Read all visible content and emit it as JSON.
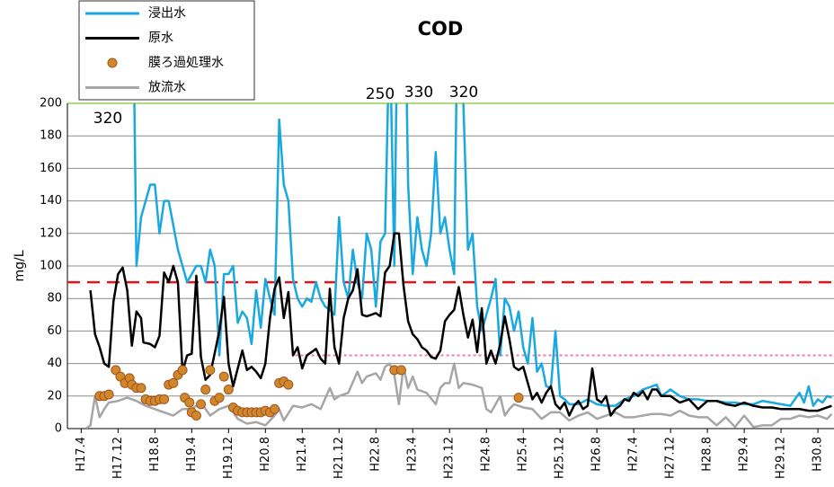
{
  "chart_data": {
    "type": "line",
    "title": "COD",
    "y_label": "mg/L",
    "xlim": [
      -3,
      163.5
    ],
    "ylim": [
      0,
      200
    ],
    "yticks": [
      0,
      20,
      40,
      60,
      80,
      100,
      120,
      140,
      160,
      180,
      200
    ],
    "xticks": [
      {
        "value": 0,
        "label": "H17.4"
      },
      {
        "value": 8,
        "label": "H17.12"
      },
      {
        "value": 16,
        "label": "H18.8"
      },
      {
        "value": 24,
        "label": "H19.4"
      },
      {
        "value": 32,
        "label": "H19.12"
      },
      {
        "value": 40,
        "label": "H20.8"
      },
      {
        "value": 48,
        "label": "H21.4"
      },
      {
        "value": 56,
        "label": "H21.12"
      },
      {
        "value": 64,
        "label": "H22.8"
      },
      {
        "value": 72,
        "label": "H23.4"
      },
      {
        "value": 80,
        "label": "H23.12"
      },
      {
        "value": 88,
        "label": "H24.8"
      },
      {
        "value": 96,
        "label": "H25.4"
      },
      {
        "value": 104,
        "label": "H25.12"
      },
      {
        "value": 112,
        "label": "H26.8"
      },
      {
        "value": 120,
        "label": "H27.4"
      },
      {
        "value": 128,
        "label": "H27.12"
      },
      {
        "value": 136,
        "label": "H28.8"
      },
      {
        "value": 144,
        "label": "H29.4"
      },
      {
        "value": 152,
        "label": "H29.12"
      },
      {
        "value": 160,
        "label": "H30.8"
      }
    ],
    "grid": true,
    "annotations": [
      "320",
      "250",
      "330",
      "320"
    ],
    "hlines": [
      {
        "value": 90,
        "color": "#e8141b",
        "style": "dashed"
      },
      {
        "value": 45,
        "color": "#f07aa8",
        "style": "dotted",
        "from": 46.5
      }
    ],
    "series": [
      {
        "name": "浸出水",
        "color": "#19a9e0",
        "style": "line",
        "x": [
          11,
          12,
          13,
          15,
          16,
          17,
          18,
          19,
          21,
          22,
          23,
          25,
          26,
          27,
          28,
          29,
          30,
          31,
          32,
          33,
          34,
          35,
          36,
          37,
          38,
          39,
          40,
          41,
          42,
          43,
          44,
          45,
          46,
          47,
          48,
          49,
          50,
          51,
          52,
          53,
          54,
          55,
          56,
          57,
          58,
          59,
          60,
          61,
          62,
          63,
          64,
          65,
          66,
          67,
          68,
          69,
          70,
          71,
          72,
          73,
          74,
          75,
          76,
          77,
          78,
          79,
          80,
          81,
          82,
          83,
          84,
          85,
          86,
          87,
          88,
          89,
          90,
          91,
          92,
          93,
          94,
          95,
          96,
          97,
          98,
          99,
          100,
          101,
          102,
          103,
          104,
          105,
          106,
          108,
          110,
          112,
          114,
          116,
          118,
          120,
          122,
          124,
          125,
          126,
          128,
          130,
          132,
          134,
          136,
          138,
          140,
          142,
          144,
          146,
          148,
          150,
          152,
          154,
          156,
          157,
          158,
          159,
          160,
          161,
          162,
          163
        ],
        "values": [
          320,
          100,
          130,
          150,
          150,
          120,
          140,
          140,
          110,
          100,
          90,
          100,
          100,
          90,
          110,
          100,
          45,
          95,
          95,
          100,
          65,
          72,
          68,
          52,
          85,
          62,
          92,
          80,
          70,
          190,
          150,
          140,
          92,
          80,
          75,
          80,
          78,
          90,
          80,
          75,
          73,
          70,
          130,
          90,
          80,
          110,
          90,
          80,
          120,
          110,
          75,
          115,
          120,
          250,
          100,
          330,
          330,
          150,
          95,
          130,
          110,
          100,
          120,
          170,
          120,
          130,
          110,
          95,
          320,
          200,
          110,
          120,
          75,
          60,
          70,
          80,
          92,
          45,
          80,
          75,
          60,
          72,
          50,
          40,
          68,
          35,
          40,
          26,
          25,
          60,
          20,
          18,
          15,
          15,
          18,
          15,
          14,
          14,
          18,
          20,
          24,
          26,
          27,
          20,
          24,
          20,
          18,
          18,
          17,
          17,
          16,
          16,
          15,
          15,
          17,
          16,
          15,
          14,
          22,
          16,
          26,
          14,
          18,
          16,
          20,
          19
        ]
      },
      {
        "name": "原水",
        "color": "#000000",
        "style": "line",
        "x": [
          2,
          3,
          4,
          5,
          6,
          7,
          8,
          9,
          10,
          11,
          12,
          13,
          13.5,
          15,
          16,
          17,
          18,
          19,
          20,
          21,
          22,
          23,
          24,
          25,
          26,
          27,
          28,
          30,
          31,
          32,
          33,
          35,
          36,
          37,
          38,
          39,
          40,
          41,
          42,
          43,
          44,
          45,
          46,
          47,
          48,
          49,
          50,
          51,
          52,
          53,
          54,
          55,
          56,
          57,
          58,
          59,
          60,
          61,
          62,
          63,
          64,
          65,
          66,
          67,
          68,
          69,
          70,
          71,
          72,
          73,
          74,
          75,
          76,
          77,
          78,
          79,
          80,
          81,
          82,
          83,
          84,
          85,
          86,
          87,
          88,
          89,
          90,
          91,
          92,
          93,
          94,
          95,
          96,
          97,
          98,
          99,
          100,
          101,
          102,
          103,
          104,
          105,
          106,
          107,
          108,
          109,
          110,
          111,
          112,
          113,
          114,
          115,
          116,
          117,
          118,
          119,
          120,
          121,
          122,
          123,
          124,
          125,
          126,
          128,
          130,
          132,
          134,
          136,
          138,
          140,
          142,
          144,
          146,
          148,
          150,
          152,
          154,
          156,
          158,
          160,
          162,
          163
        ],
        "values": [
          85,
          58,
          50,
          40,
          38,
          78,
          95,
          99,
          85,
          51,
          72,
          68,
          53,
          52,
          50,
          57,
          96,
          90,
          100,
          90,
          35,
          45,
          46,
          94,
          44,
          30,
          33,
          60,
          81,
          40,
          26,
          48,
          36,
          38,
          35,
          31,
          40,
          68,
          86,
          93,
          68,
          84,
          45,
          50,
          37,
          45,
          47,
          49,
          43,
          40,
          86,
          50,
          40,
          68,
          80,
          85,
          98,
          70,
          69,
          70,
          71,
          69,
          96,
          100,
          120,
          120,
          88,
          66,
          58,
          55,
          50,
          48,
          44,
          43,
          48,
          66,
          70,
          73,
          87,
          70,
          56,
          67,
          47,
          74,
          40,
          48,
          40,
          52,
          69,
          55,
          38,
          36,
          38,
          28,
          18,
          22,
          16,
          22,
          26,
          15,
          12,
          16,
          8,
          14,
          17,
          12,
          14,
          37,
          18,
          16,
          20,
          8,
          12,
          14,
          18,
          17,
          22,
          20,
          23,
          18,
          24,
          24,
          20,
          20,
          16,
          18,
          12,
          17,
          17,
          15,
          14,
          16,
          14,
          13,
          13,
          12,
          12,
          12,
          11,
          11,
          13,
          14
        ]
      },
      {
        "name": "膜ろ過処理水",
        "color": "#d0882c",
        "edge": "#a5531c",
        "style": "markers",
        "x": [
          4,
          5,
          6,
          7.5,
          8.5,
          9.5,
          10.5,
          11,
          12,
          13,
          14,
          15,
          16,
          17,
          18,
          19,
          20,
          21,
          22,
          22.5,
          23.5,
          24,
          25,
          26,
          27,
          28,
          29,
          30,
          31,
          32,
          33,
          34,
          35,
          36,
          37,
          38,
          39,
          40,
          41,
          42,
          43,
          44,
          45,
          68,
          69.5,
          95
        ],
        "values": [
          20,
          20,
          21,
          36,
          32,
          28,
          31,
          27,
          25,
          25,
          18,
          17,
          17,
          18,
          18,
          27,
          28,
          33,
          36,
          19,
          16,
          10,
          8,
          15,
          24,
          36,
          17,
          19,
          32,
          24,
          13,
          11,
          10,
          10,
          10,
          10,
          10,
          11,
          10,
          12,
          28,
          29,
          27,
          36,
          36,
          19
        ]
      },
      {
        "name": "放流水",
        "color": "#a6a6a6",
        "style": "line",
        "x": [
          1,
          2,
          3,
          4,
          5,
          6,
          8,
          10,
          12,
          14,
          16,
          18,
          20,
          22,
          24,
          26,
          28,
          30,
          32,
          34,
          36,
          38,
          40,
          42,
          43,
          44,
          46,
          48,
          50,
          52,
          54,
          55,
          56,
          58,
          60,
          61,
          62,
          64,
          65,
          66,
          67,
          68,
          69,
          70,
          71,
          72,
          73,
          75,
          77,
          78,
          79,
          80,
          81,
          82,
          83,
          85,
          87,
          88,
          89,
          90,
          91,
          92,
          93,
          94,
          96,
          98,
          100,
          102,
          104,
          106,
          108,
          110,
          112,
          114,
          116,
          118,
          120,
          122,
          124,
          126,
          128,
          130,
          132,
          134,
          136,
          138,
          140,
          142,
          144,
          146,
          148,
          150,
          152,
          154,
          156,
          158,
          160,
          162,
          163
        ],
        "values": [
          0,
          2,
          20,
          7,
          12,
          16,
          17,
          19,
          17,
          14,
          12,
          10,
          8,
          12,
          12,
          16,
          8,
          12,
          14,
          6,
          3,
          4,
          2,
          8,
          12,
          5,
          14,
          13,
          15,
          12,
          25,
          18,
          20,
          22,
          35,
          28,
          32,
          34,
          30,
          38,
          40,
          33,
          15,
          38,
          25,
          32,
          24,
          22,
          15,
          25,
          28,
          28,
          40,
          25,
          28,
          27,
          25,
          12,
          10,
          15,
          20,
          8,
          12,
          15,
          13,
          12,
          6,
          10,
          10,
          5,
          8,
          10,
          6,
          8,
          10,
          7,
          7,
          8,
          9,
          9,
          8,
          11,
          8,
          7,
          7,
          2,
          7,
          1,
          8,
          1,
          2,
          2,
          6,
          6,
          8,
          7,
          8,
          6,
          9
        ]
      }
    ]
  }
}
